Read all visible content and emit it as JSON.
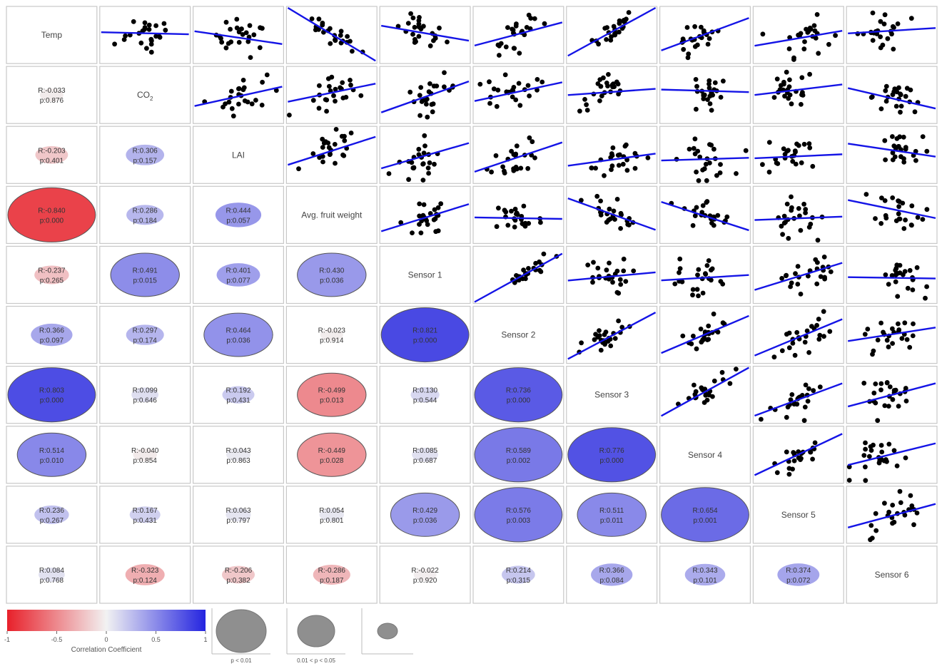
{
  "chart_data": {
    "type": "scatter",
    "variables": [
      "Temp",
      "CO",
      "LAI",
      "Avg. fruit weight",
      "Sensor 1",
      "Sensor 2",
      "Sensor 3",
      "Sensor 4",
      "Sensor 5",
      "Sensor 6"
    ],
    "co2_subscript": "2",
    "diagonal_labels": [
      "Temp",
      "CO",
      "LAI",
      "Avg. fruit weight",
      "Sensor 1",
      "Sensor 2",
      "Sensor 3",
      "Sensor 4",
      "Sensor 5",
      "Sensor 6"
    ],
    "correlations": [
      {
        "row": 1,
        "col": 0,
        "r": -0.033,
        "r_label": "R:-0.033",
        "p_label": "p:0.876"
      },
      {
        "row": 2,
        "col": 0,
        "r": -0.203,
        "r_label": "R:-0.203",
        "p_label": "p:0.401"
      },
      {
        "row": 2,
        "col": 1,
        "r": 0.306,
        "r_label": "R:0.306",
        "p_label": "p:0.157"
      },
      {
        "row": 3,
        "col": 0,
        "r": -0.84,
        "r_label": "R:-0.840",
        "p_label": "p:0.000"
      },
      {
        "row": 3,
        "col": 1,
        "r": 0.286,
        "r_label": "R:0.286",
        "p_label": "p:0.184"
      },
      {
        "row": 3,
        "col": 2,
        "r": 0.444,
        "r_label": "R:0.444",
        "p_label": "p:0.057"
      },
      {
        "row": 4,
        "col": 0,
        "r": -0.237,
        "r_label": "R:-0.237",
        "p_label": "p:0.265"
      },
      {
        "row": 4,
        "col": 1,
        "r": 0.491,
        "r_label": "R:0.491",
        "p_label": "p:0.015"
      },
      {
        "row": 4,
        "col": 2,
        "r": 0.401,
        "r_label": "R:0.401",
        "p_label": "p:0.077"
      },
      {
        "row": 4,
        "col": 3,
        "r": 0.43,
        "r_label": "R:0.430",
        "p_label": "p:0.036"
      },
      {
        "row": 5,
        "col": 0,
        "r": 0.366,
        "r_label": "R:0.366",
        "p_label": "p:0.097"
      },
      {
        "row": 5,
        "col": 1,
        "r": 0.297,
        "r_label": "R:0.297",
        "p_label": "p:0.174"
      },
      {
        "row": 5,
        "col": 2,
        "r": 0.464,
        "r_label": "R:0.464",
        "p_label": "p:0.036"
      },
      {
        "row": 5,
        "col": 3,
        "r": -0.023,
        "r_label": "R:-0.023",
        "p_label": "p:0.914"
      },
      {
        "row": 5,
        "col": 4,
        "r": 0.821,
        "r_label": "R:0.821",
        "p_label": "p:0.000"
      },
      {
        "row": 6,
        "col": 0,
        "r": 0.803,
        "r_label": "R:0.803",
        "p_label": "p:0.000"
      },
      {
        "row": 6,
        "col": 1,
        "r": 0.099,
        "r_label": "R:0.099",
        "p_label": "p:0.646"
      },
      {
        "row": 6,
        "col": 2,
        "r": 0.192,
        "r_label": "R:0.192",
        "p_label": "p:0.431"
      },
      {
        "row": 6,
        "col": 3,
        "r": -0.499,
        "r_label": "R:-0.499",
        "p_label": "p:0.013"
      },
      {
        "row": 6,
        "col": 4,
        "r": 0.13,
        "r_label": "R:0.130",
        "p_label": "p:0.544"
      },
      {
        "row": 6,
        "col": 5,
        "r": 0.736,
        "r_label": "R:0.736",
        "p_label": "p:0.000"
      },
      {
        "row": 7,
        "col": 0,
        "r": 0.514,
        "r_label": "R:0.514",
        "p_label": "p:0.010"
      },
      {
        "row": 7,
        "col": 1,
        "r": -0.04,
        "r_label": "R:-0.040",
        "p_label": "p:0.854"
      },
      {
        "row": 7,
        "col": 2,
        "r": 0.043,
        "r_label": "R:0.043",
        "p_label": "p:0.863"
      },
      {
        "row": 7,
        "col": 3,
        "r": -0.449,
        "r_label": "R:-0.449",
        "p_label": "p:0.028"
      },
      {
        "row": 7,
        "col": 4,
        "r": 0.085,
        "r_label": "R:0.085",
        "p_label": "p:0.687"
      },
      {
        "row": 7,
        "col": 5,
        "r": 0.589,
        "r_label": "R:0.589",
        "p_label": "p:0.002"
      },
      {
        "row": 7,
        "col": 6,
        "r": 0.776,
        "r_label": "R:0.776",
        "p_label": "p:0.000"
      },
      {
        "row": 8,
        "col": 0,
        "r": 0.236,
        "r_label": "R:0.236",
        "p_label": "p:0.267"
      },
      {
        "row": 8,
        "col": 1,
        "r": 0.167,
        "r_label": "R:0.167",
        "p_label": "p:0.431"
      },
      {
        "row": 8,
        "col": 2,
        "r": 0.063,
        "r_label": "R:0.063",
        "p_label": "p:0.797"
      },
      {
        "row": 8,
        "col": 3,
        "r": 0.054,
        "r_label": "R:0.054",
        "p_label": "p:0.801"
      },
      {
        "row": 8,
        "col": 4,
        "r": 0.429,
        "r_label": "R:0.429",
        "p_label": "p:0.036"
      },
      {
        "row": 8,
        "col": 5,
        "r": 0.576,
        "r_label": "R:0.576",
        "p_label": "p:0.003"
      },
      {
        "row": 8,
        "col": 6,
        "r": 0.511,
        "r_label": "R:0.511",
        "p_label": "p:0.011"
      },
      {
        "row": 8,
        "col": 7,
        "r": 0.654,
        "r_label": "R:0.654",
        "p_label": "p:0.001"
      },
      {
        "row": 9,
        "col": 0,
        "r": 0.084,
        "r_label": "R:0.084",
        "p_label": "p:0.768"
      },
      {
        "row": 9,
        "col": 1,
        "r": -0.323,
        "r_label": "R:-0.323",
        "p_label": "p:0.124"
      },
      {
        "row": 9,
        "col": 2,
        "r": -0.206,
        "r_label": "R:-0.206",
        "p_label": "p:0.382"
      },
      {
        "row": 9,
        "col": 3,
        "r": -0.286,
        "r_label": "R:-0.286",
        "p_label": "p:0.187"
      },
      {
        "row": 9,
        "col": 4,
        "r": -0.022,
        "r_label": "R:-0.022",
        "p_label": "p:0.920"
      },
      {
        "row": 9,
        "col": 5,
        "r": 0.214,
        "r_label": "R:0.214",
        "p_label": "p:0.315"
      },
      {
        "row": 9,
        "col": 6,
        "r": 0.366,
        "r_label": "R:0.366",
        "p_label": "p:0.084"
      },
      {
        "row": 9,
        "col": 7,
        "r": 0.343,
        "r_label": "R:0.343",
        "p_label": "p:0.101"
      },
      {
        "row": 9,
        "col": 8,
        "r": 0.374,
        "r_label": "R:0.374",
        "p_label": "p:0.072"
      }
    ],
    "legend": {
      "colorbar_title": "Correlation Coefficient",
      "colorbar_ticks": [
        "-1",
        "-0.5",
        "0",
        "0.5",
        "1"
      ],
      "colorbar_range": [
        -1,
        1
      ],
      "colors": {
        "negative": "#e8202a",
        "neutral": "#f2f2f2",
        "positive": "#2424e0"
      },
      "size_legend": [
        {
          "label": "p < 0.01",
          "size": "large"
        },
        {
          "label": "0.01 < p < 0.05",
          "size": "medium"
        },
        {
          "label": "",
          "size": "small"
        }
      ]
    },
    "styles": {
      "point_color": "#000000",
      "line_color": "#1414e6",
      "panel_border": "#c8c8c8",
      "ellipse_stroke": "#555555"
    }
  }
}
